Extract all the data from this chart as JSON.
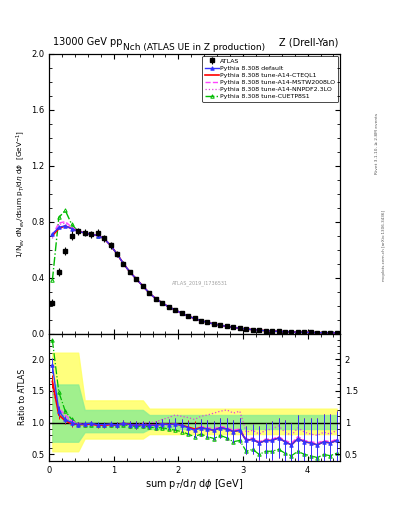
{
  "title_left": "13000 GeV pp",
  "title_right": "Z (Drell-Yan)",
  "plot_title": "Nch (ATLAS UE in Z production)",
  "ylabel_main": "1/N$_{ev}$ dN$_{ev}$/dsum p$_T$/dη dϕ  [GeV$^{-1}$]",
  "ylabel_ratio": "Ratio to ATLAS",
  "xlabel": "sum p$_T$/dη dϕ [GeV]",
  "right_label1": "Rivet 3.1.10, ≥ 2.8M events",
  "right_label2": "mcplots.cern.ch [arXiv:1306.3436]",
  "watermark": "ATLAS_2019_I1736531",
  "xlim": [
    0,
    4.5
  ],
  "ylim_main": [
    0,
    2.0
  ],
  "ylim_ratio": [
    0.4,
    2.4
  ],
  "atlas_x": [
    0.05,
    0.15,
    0.25,
    0.35,
    0.45,
    0.55,
    0.65,
    0.75,
    0.85,
    0.95,
    1.05,
    1.15,
    1.25,
    1.35,
    1.45,
    1.55,
    1.65,
    1.75,
    1.85,
    1.95,
    2.05,
    2.15,
    2.25,
    2.35,
    2.45,
    2.55,
    2.65,
    2.75,
    2.85,
    2.95,
    3.05,
    3.15,
    3.25,
    3.35,
    3.45,
    3.55,
    3.65,
    3.75,
    3.85,
    3.95,
    4.05,
    4.15,
    4.25,
    4.35,
    4.45
  ],
  "atlas_y": [
    0.22,
    0.44,
    0.59,
    0.7,
    0.73,
    0.72,
    0.71,
    0.72,
    0.68,
    0.63,
    0.57,
    0.5,
    0.44,
    0.39,
    0.34,
    0.29,
    0.25,
    0.22,
    0.19,
    0.17,
    0.145,
    0.125,
    0.108,
    0.093,
    0.08,
    0.069,
    0.06,
    0.051,
    0.044,
    0.038,
    0.033,
    0.028,
    0.024,
    0.021,
    0.018,
    0.016,
    0.014,
    0.012,
    0.01,
    0.009,
    0.008,
    0.007,
    0.006,
    0.005,
    0.005
  ],
  "atlas_yerr": [
    0.025,
    0.03,
    0.03,
    0.03,
    0.025,
    0.025,
    0.025,
    0.025,
    0.022,
    0.022,
    0.02,
    0.018,
    0.016,
    0.014,
    0.012,
    0.011,
    0.01,
    0.009,
    0.008,
    0.007,
    0.007,
    0.006,
    0.005,
    0.005,
    0.004,
    0.004,
    0.003,
    0.003,
    0.003,
    0.002,
    0.002,
    0.002,
    0.002,
    0.002,
    0.002,
    0.001,
    0.001,
    0.001,
    0.001,
    0.001,
    0.001,
    0.001,
    0.001,
    0.001,
    0.001
  ],
  "default_y": [
    0.71,
    0.76,
    0.77,
    0.75,
    0.73,
    0.72,
    0.71,
    0.7,
    0.68,
    0.63,
    0.57,
    0.5,
    0.44,
    0.39,
    0.34,
    0.29,
    0.25,
    0.22,
    0.19,
    0.17,
    0.145,
    0.125,
    0.108,
    0.093,
    0.08,
    0.069,
    0.06,
    0.051,
    0.044,
    0.038,
    0.033,
    0.028,
    0.024,
    0.021,
    0.018,
    0.016,
    0.014,
    0.012,
    0.01,
    0.009,
    0.008,
    0.007,
    0.006,
    0.005,
    0.005
  ],
  "cteql1_y": [
    0.7,
    0.75,
    0.77,
    0.75,
    0.73,
    0.72,
    0.71,
    0.7,
    0.68,
    0.63,
    0.57,
    0.5,
    0.44,
    0.39,
    0.34,
    0.29,
    0.25,
    0.22,
    0.19,
    0.17,
    0.145,
    0.125,
    0.108,
    0.093,
    0.08,
    0.069,
    0.06,
    0.051,
    0.044,
    0.038,
    0.033,
    0.028,
    0.024,
    0.021,
    0.018,
    0.016,
    0.014,
    0.012,
    0.01,
    0.009,
    0.008,
    0.007,
    0.006,
    0.005,
    0.005
  ],
  "mstw_y": [
    0.7,
    0.79,
    0.8,
    0.76,
    0.73,
    0.72,
    0.71,
    0.7,
    0.68,
    0.63,
    0.57,
    0.5,
    0.44,
    0.39,
    0.34,
    0.29,
    0.25,
    0.22,
    0.19,
    0.17,
    0.145,
    0.125,
    0.108,
    0.093,
    0.08,
    0.069,
    0.06,
    0.051,
    0.044,
    0.038,
    0.033,
    0.028,
    0.024,
    0.021,
    0.018,
    0.016,
    0.014,
    0.012,
    0.01,
    0.009,
    0.008,
    0.007,
    0.006,
    0.005,
    0.005
  ],
  "nnpdf_y": [
    0.68,
    0.78,
    0.79,
    0.76,
    0.73,
    0.72,
    0.71,
    0.7,
    0.68,
    0.63,
    0.57,
    0.5,
    0.44,
    0.39,
    0.34,
    0.29,
    0.25,
    0.22,
    0.19,
    0.17,
    0.145,
    0.125,
    0.108,
    0.093,
    0.08,
    0.069,
    0.06,
    0.051,
    0.044,
    0.038,
    0.033,
    0.028,
    0.024,
    0.021,
    0.018,
    0.016,
    0.014,
    0.012,
    0.01,
    0.009,
    0.008,
    0.007,
    0.006,
    0.005,
    0.005
  ],
  "cuetp_y": [
    0.38,
    0.83,
    0.88,
    0.78,
    0.73,
    0.72,
    0.71,
    0.7,
    0.68,
    0.63,
    0.57,
    0.5,
    0.44,
    0.39,
    0.34,
    0.29,
    0.25,
    0.22,
    0.19,
    0.17,
    0.145,
    0.125,
    0.108,
    0.093,
    0.08,
    0.069,
    0.06,
    0.051,
    0.044,
    0.038,
    0.033,
    0.028,
    0.024,
    0.021,
    0.018,
    0.016,
    0.014,
    0.012,
    0.01,
    0.009,
    0.008,
    0.007,
    0.006,
    0.005,
    0.005
  ],
  "ratio_default": [
    1.9,
    1.18,
    1.05,
    1.0,
    0.97,
    0.98,
    0.99,
    0.97,
    0.97,
    0.98,
    0.96,
    0.99,
    0.97,
    0.96,
    0.97,
    0.96,
    0.96,
    0.98,
    0.97,
    0.98,
    0.96,
    0.92,
    0.88,
    0.92,
    0.9,
    0.88,
    0.92,
    0.9,
    0.86,
    0.88,
    0.72,
    0.74,
    0.68,
    0.72,
    0.72,
    0.76,
    0.7,
    0.65,
    0.75,
    0.7,
    0.68,
    0.65,
    0.7,
    0.68,
    0.72
  ],
  "ratio_cteql1": [
    1.65,
    1.12,
    1.03,
    0.98,
    0.97,
    0.97,
    0.98,
    0.96,
    0.96,
    0.97,
    0.96,
    0.99,
    0.97,
    0.96,
    0.97,
    0.96,
    0.96,
    0.98,
    0.97,
    0.98,
    0.96,
    0.93,
    0.9,
    0.92,
    0.9,
    0.88,
    0.92,
    0.9,
    0.86,
    0.88,
    0.72,
    0.74,
    0.68,
    0.72,
    0.72,
    0.76,
    0.7,
    0.65,
    0.75,
    0.7,
    0.68,
    0.65,
    0.7,
    0.68,
    0.72
  ],
  "ratio_mstw": [
    1.65,
    1.22,
    1.12,
    1.03,
    0.98,
    0.97,
    0.97,
    0.96,
    0.96,
    0.97,
    0.96,
    0.99,
    0.97,
    0.96,
    0.97,
    0.96,
    0.96,
    0.98,
    0.97,
    0.98,
    0.96,
    0.93,
    0.88,
    0.94,
    0.92,
    0.9,
    0.94,
    0.92,
    0.88,
    0.9,
    0.74,
    0.76,
    0.7,
    0.74,
    0.74,
    0.78,
    0.72,
    0.68,
    0.78,
    0.72,
    0.7,
    0.68,
    0.72,
    0.7,
    0.74
  ],
  "ratio_nnpdf": [
    1.5,
    1.18,
    1.08,
    1.02,
    0.98,
    0.97,
    0.98,
    0.96,
    0.96,
    0.97,
    0.96,
    0.99,
    0.97,
    0.97,
    0.99,
    1.0,
    1.01,
    1.05,
    1.08,
    1.12,
    1.1,
    1.08,
    1.05,
    1.1,
    1.12,
    1.15,
    1.18,
    1.2,
    1.15,
    1.18,
    0.85,
    0.88,
    0.82,
    0.88,
    0.9,
    0.95,
    0.85,
    0.8,
    0.92,
    0.85,
    0.82,
    0.8,
    0.85,
    0.82,
    0.88
  ],
  "ratio_cuetp": [
    2.3,
    1.48,
    1.18,
    1.05,
    0.98,
    0.97,
    0.97,
    0.96,
    0.96,
    0.97,
    0.96,
    0.97,
    0.95,
    0.94,
    0.95,
    0.93,
    0.92,
    0.92,
    0.9,
    0.88,
    0.86,
    0.82,
    0.78,
    0.82,
    0.78,
    0.75,
    0.8,
    0.76,
    0.7,
    0.72,
    0.55,
    0.58,
    0.5,
    0.55,
    0.55,
    0.58,
    0.52,
    0.48,
    0.55,
    0.5,
    0.48,
    0.45,
    0.5,
    0.48,
    0.52
  ],
  "ratio_default_err": [
    0.12,
    0.08,
    0.06,
    0.05,
    0.04,
    0.04,
    0.04,
    0.04,
    0.04,
    0.04,
    0.05,
    0.05,
    0.05,
    0.06,
    0.06,
    0.06,
    0.07,
    0.07,
    0.08,
    0.09,
    0.1,
    0.11,
    0.12,
    0.13,
    0.14,
    0.15,
    0.16,
    0.17,
    0.18,
    0.2,
    0.22,
    0.24,
    0.26,
    0.28,
    0.3,
    0.32,
    0.34,
    0.35,
    0.37,
    0.38,
    0.4,
    0.42,
    0.44,
    0.45,
    0.46
  ],
  "ratio_cteql1_err": [
    0.1,
    0.07,
    0.05,
    0.05,
    0.04,
    0.04,
    0.04,
    0.04,
    0.04,
    0.04,
    0.05,
    0.05,
    0.05,
    0.06,
    0.06,
    0.06,
    0.07,
    0.07,
    0.08,
    0.09,
    0.1,
    0.11,
    0.12,
    0.13,
    0.14,
    0.15,
    0.16,
    0.17,
    0.18,
    0.2,
    0.22,
    0.24,
    0.26,
    0.28,
    0.3,
    0.32,
    0.34,
    0.35,
    0.37,
    0.38,
    0.4,
    0.42,
    0.44,
    0.45,
    0.46
  ],
  "ratio_mstw_err": [
    0.1,
    0.07,
    0.05,
    0.05,
    0.04,
    0.04,
    0.04,
    0.04,
    0.04,
    0.04,
    0.05,
    0.05,
    0.05,
    0.06,
    0.06,
    0.06,
    0.07,
    0.07,
    0.08,
    0.09,
    0.1,
    0.11,
    0.12,
    0.13,
    0.14,
    0.15,
    0.16,
    0.17,
    0.18,
    0.2,
    0.22,
    0.24,
    0.26,
    0.28,
    0.3,
    0.32,
    0.34,
    0.35,
    0.37,
    0.38,
    0.4,
    0.42,
    0.44,
    0.45,
    0.46
  ]
}
